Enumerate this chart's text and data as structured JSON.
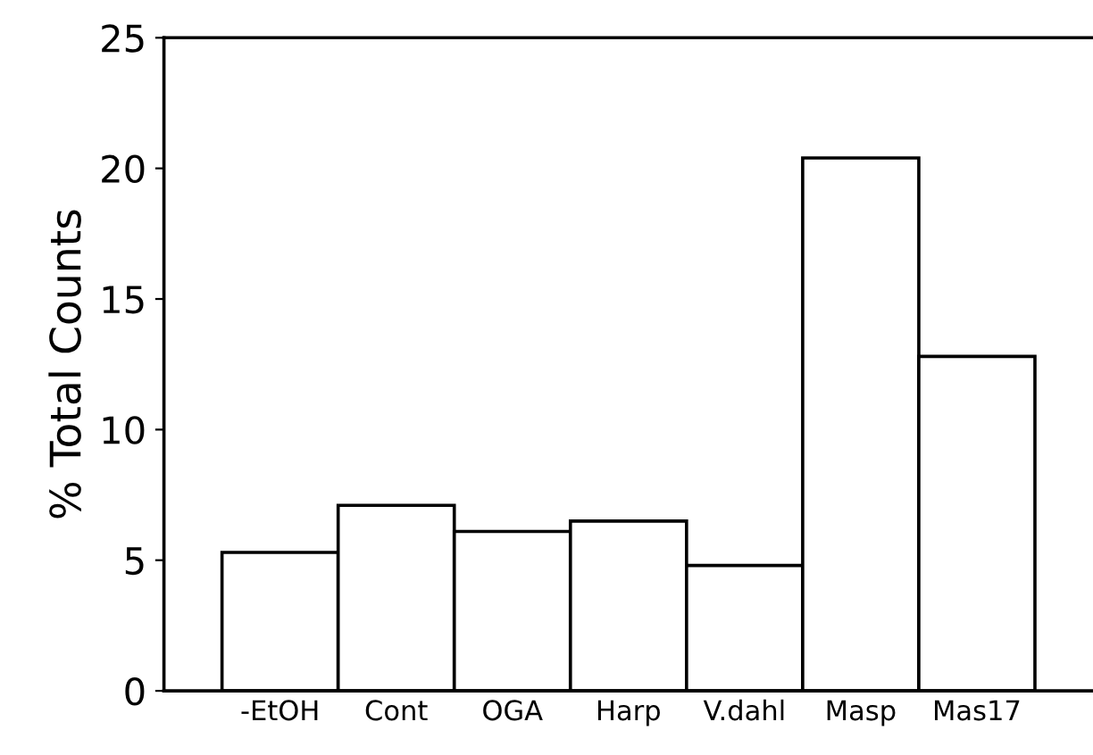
{
  "chart_data": {
    "type": "bar",
    "ylabel": "% Total Counts",
    "categories": [
      "-EtOH",
      "Cont",
      "OGA",
      "Harp",
      "V.dahl",
      "Masp",
      "Mas17"
    ],
    "values": [
      5.3,
      7.1,
      6.1,
      6.5,
      4.8,
      20.4,
      12.8
    ],
    "color": "#ffffff",
    "ylim": [
      0,
      25
    ],
    "yticks": [
      0,
      5,
      10,
      15,
      20,
      25
    ],
    "grid": false
  }
}
